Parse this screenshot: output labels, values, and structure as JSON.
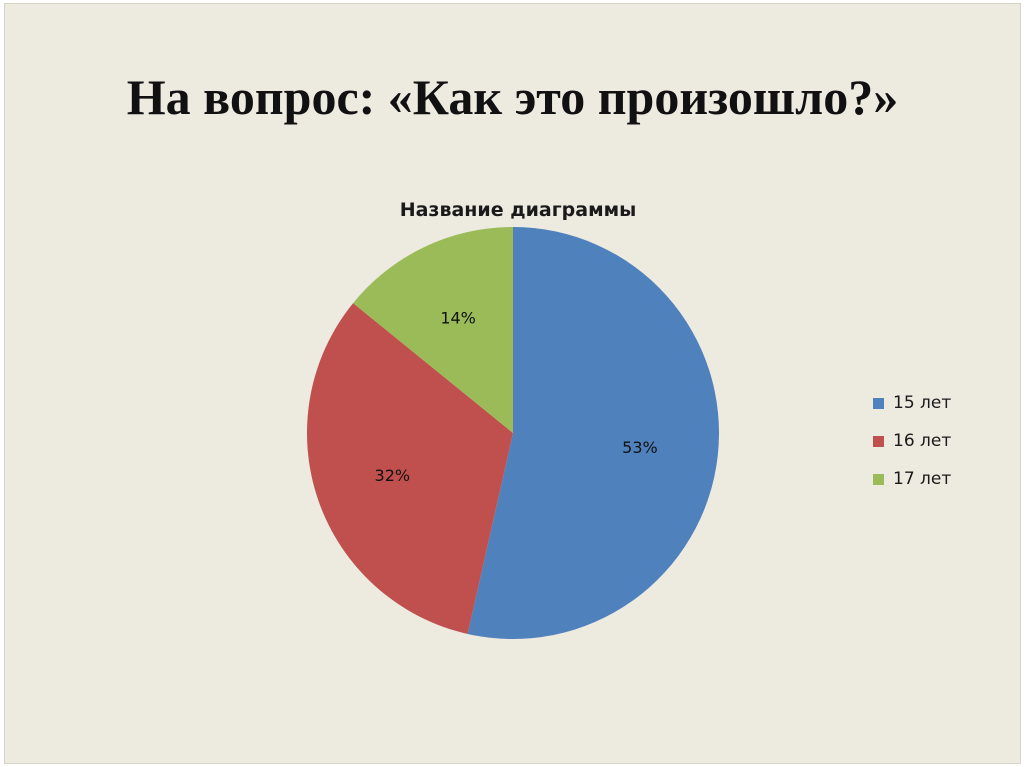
{
  "slide": {
    "title": "На вопрос: «Как это произошло?»"
  },
  "chart_data": {
    "type": "pie",
    "title": "Название диаграммы",
    "categories": [
      "15 лет",
      "16 лет",
      "17 лет"
    ],
    "values": [
      53,
      32,
      14
    ],
    "labels": [
      "53%",
      "32%",
      "14%"
    ],
    "colors": [
      "#4f81bd",
      "#c0504d",
      "#9bbb59"
    ],
    "legend_position": "right"
  }
}
